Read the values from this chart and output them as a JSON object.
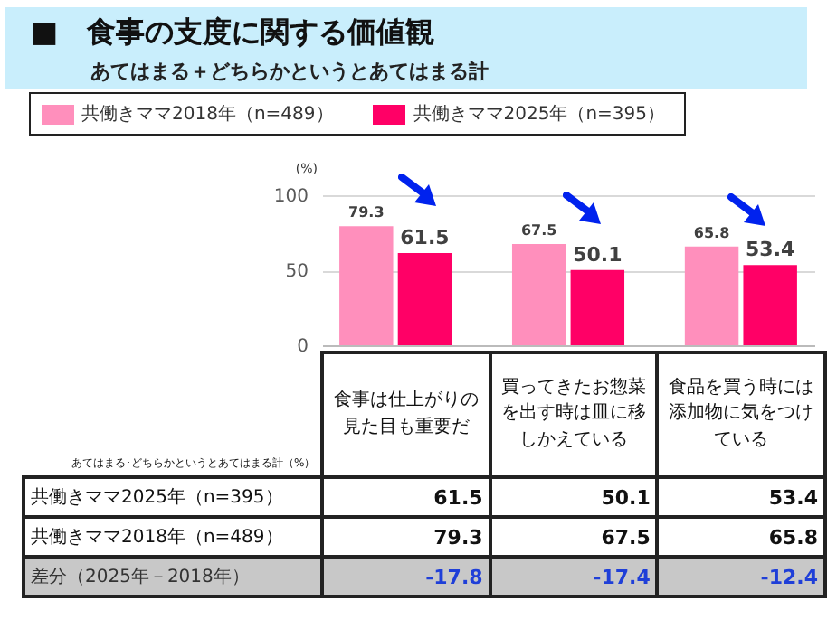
{
  "chart_data": {
    "type": "bar",
    "title": "■　食事の支度に関する価値観",
    "subtitle": "あてはまる＋どちらかというとあてはまる計",
    "ylabel": "(%)",
    "categories": [
      "食事は仕上がりの見た目も重要だ",
      "買ってきたお惣菜を出す時は皿に移しかえている",
      "食品を買う時には添加物に気をつけている"
    ],
    "series": [
      {
        "name": "共働きママ2018年（n=489）",
        "color": "#ff8fbc",
        "values": [
          79.3,
          67.5,
          65.8
        ],
        "value_labels": [
          "79.3",
          "67.5",
          "65.8"
        ]
      },
      {
        "name": "共働きママ2025年（n=395）",
        "color": "#ff0066",
        "values": [
          61.5,
          50.1,
          53.4
        ],
        "value_labels": [
          "61.5",
          "50.1",
          "53.4"
        ]
      }
    ],
    "ylim": [
      0,
      100
    ],
    "yticks": [
      0,
      50,
      100
    ],
    "grid": "y",
    "legend": "top left",
    "annotations": [
      "あてはまる･どちらかというとあてはまる計（%）",
      "61.5",
      "50.1",
      "53.4",
      "79.3",
      "67.5",
      "65.8",
      "差分（2025年－2018年）",
      "-17.8",
      "-17.4",
      "-12.4"
    ]
  }
}
